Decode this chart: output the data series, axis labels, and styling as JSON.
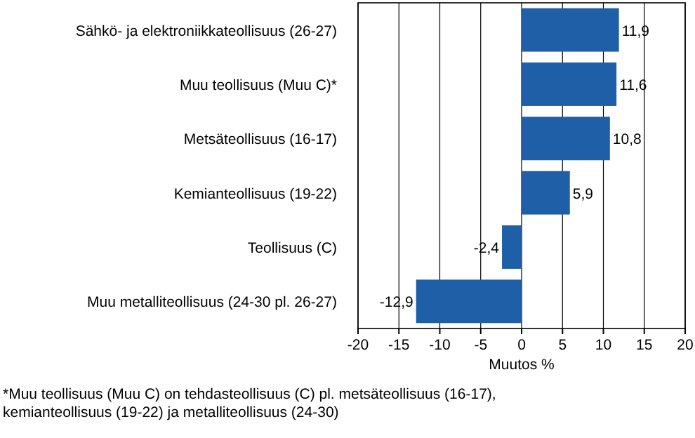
{
  "chart_data": {
    "type": "bar",
    "orientation": "horizontal",
    "categories": [
      "Sähkö- ja elektroniikkateollisuus (26-27)",
      "Muu teollisuus (Muu C)*",
      "Metsäteollisuus (16-17)",
      "Kemianteollisuus (19-22)",
      "Teollisuus (C)",
      "Muu metalliteollisuus (24-30 pl. 26-27)"
    ],
    "values": [
      11.9,
      11.6,
      10.8,
      5.9,
      -2.4,
      -12.9
    ],
    "value_labels": [
      "11,9",
      "11,6",
      "10,8",
      "5,9",
      "-2,4",
      "-12,9"
    ],
    "color": "#1f5fa8",
    "xlim": [
      -20,
      20
    ],
    "xticks": [
      -20,
      -15,
      -10,
      -5,
      0,
      5,
      10,
      15,
      20
    ],
    "xlabel": "Muutos %",
    "grid": "x",
    "annotations": [
      "*Muu teollisuus (Muu C) on tehdasteollisuus (C) pl. metsäteollisuus (16-17), kemianteollisuus (19-22) ja metalliteollisuus (24-30)"
    ]
  }
}
